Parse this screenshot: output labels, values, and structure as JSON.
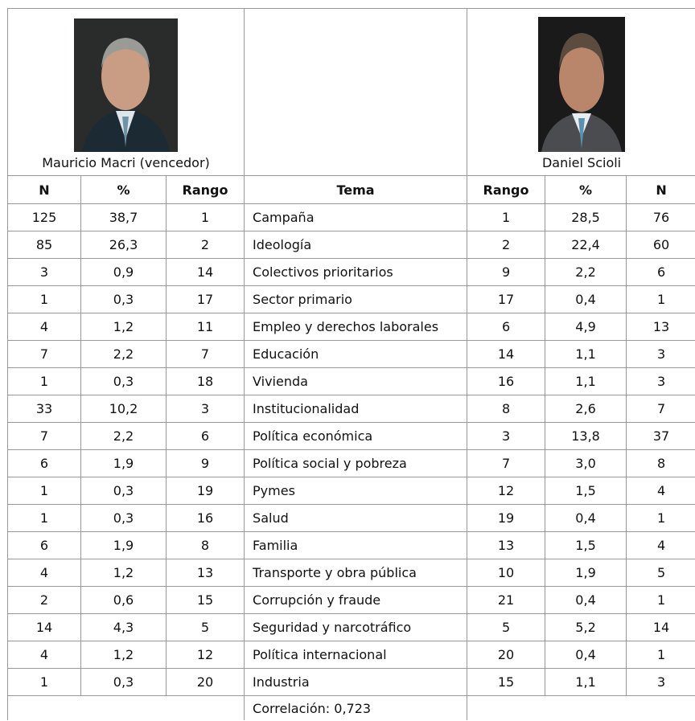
{
  "left_candidate": {
    "name": "Mauricio Macri (vencedor)"
  },
  "right_candidate": {
    "name": "Daniel Scioli"
  },
  "table": {
    "header": [
      "N",
      "%",
      "Rango",
      "Tema",
      "Rango",
      "%",
      "N"
    ],
    "rows": [
      [
        "125",
        "38,7",
        "1",
        "Campaña",
        "1",
        "28,5",
        "76"
      ],
      [
        "85",
        "26,3",
        "2",
        "Ideología",
        "2",
        "22,4",
        "60"
      ],
      [
        "3",
        "0,9",
        "14",
        "Colectivos prioritarios",
        "9",
        "2,2",
        "6"
      ],
      [
        "1",
        "0,3",
        "17",
        "Sector primario",
        "17",
        "0,4",
        "1"
      ],
      [
        "4",
        "1,2",
        "11",
        "Empleo y derechos laborales",
        "6",
        "4,9",
        "13"
      ],
      [
        "7",
        "2,2",
        "7",
        "Educación",
        "14",
        "1,1",
        "3"
      ],
      [
        "1",
        "0,3",
        "18",
        "Vivienda",
        "16",
        "1,1",
        "3"
      ],
      [
        "33",
        "10,2",
        "3",
        "Institucionalidad",
        "8",
        "2,6",
        "7"
      ],
      [
        "7",
        "2,2",
        "6",
        "Política económica",
        "3",
        "13,8",
        "37"
      ],
      [
        "6",
        "1,9",
        "9",
        "Política social y pobreza",
        "7",
        "3,0",
        "8"
      ],
      [
        "1",
        "0,3",
        "19",
        "Pymes",
        "12",
        "1,5",
        "4"
      ],
      [
        "1",
        "0,3",
        "16",
        "Salud",
        "19",
        "0,4",
        "1"
      ],
      [
        "6",
        "1,9",
        "8",
        "Familia",
        "13",
        "1,5",
        "4"
      ],
      [
        "4",
        "1,2",
        "13",
        "Transporte y obra pública",
        "10",
        "1,9",
        "5"
      ],
      [
        "2",
        "0,6",
        "15",
        "Corrupción y fraude",
        "21",
        "0,4",
        "1"
      ],
      [
        "14",
        "4,3",
        "5",
        "Seguridad y narcotráfico",
        "5",
        "5,2",
        "14"
      ],
      [
        "4",
        "1,2",
        "12",
        "Política internacional",
        "20",
        "0,4",
        "1"
      ],
      [
        "1",
        "0,3",
        "20",
        "Industria",
        "15",
        "1,1",
        "3"
      ]
    ],
    "footer": "Correlación: 0,723"
  }
}
